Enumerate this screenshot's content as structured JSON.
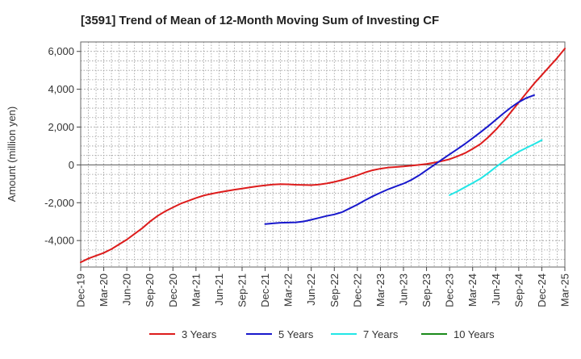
{
  "chart_data": {
    "type": "line",
    "title": "[3591]  Trend of Mean of 12-Month Moving Sum of Investing CF",
    "xlabel": "",
    "ylabel": "Amount (million yen)",
    "ylim": [
      -5400,
      6500
    ],
    "yticks": [
      -4000,
      -2000,
      0,
      2000,
      4000,
      6000
    ],
    "ytick_labels": [
      "-4,000",
      "-2,000",
      "0",
      "2,000",
      "4,000",
      "6,000"
    ],
    "x_labels": [
      "Dec-19",
      "Mar-20",
      "Jun-20",
      "Sep-20",
      "Dec-20",
      "Mar-21",
      "Jun-21",
      "Sep-21",
      "Dec-21",
      "Mar-22",
      "Jun-22",
      "Sep-22",
      "Dec-22",
      "Mar-23",
      "Jun-23",
      "Sep-23",
      "Dec-23",
      "Mar-24",
      "Jun-24",
      "Sep-24",
      "Dec-24",
      "Mar-25"
    ],
    "x_count": 64,
    "grid": true,
    "legend_position": "bottom",
    "series": [
      {
        "name": "3 Years",
        "color": "#dd1c1c",
        "start_index": 0,
        "values": [
          -5150,
          -4950,
          -4800,
          -4650,
          -4450,
          -4200,
          -3950,
          -3650,
          -3350,
          -3000,
          -2700,
          -2450,
          -2250,
          -2050,
          -1900,
          -1750,
          -1620,
          -1530,
          -1450,
          -1380,
          -1310,
          -1250,
          -1190,
          -1130,
          -1080,
          -1040,
          -1020,
          -1030,
          -1050,
          -1060,
          -1070,
          -1040,
          -980,
          -900,
          -800,
          -680,
          -550,
          -400,
          -280,
          -200,
          -140,
          -110,
          -80,
          -40,
          0,
          50,
          120,
          200,
          300,
          450,
          620,
          850,
          1100,
          1450,
          1850,
          2300,
          2800,
          3300,
          3800,
          4300,
          4750,
          5200,
          5650,
          6150
        ]
      },
      {
        "name": "5 Years",
        "color": "#1818cc",
        "start_index": 24,
        "values": [
          -3130,
          -3090,
          -3060,
          -3050,
          -3040,
          -2990,
          -2900,
          -2800,
          -2700,
          -2620,
          -2500,
          -2300,
          -2100,
          -1870,
          -1660,
          -1470,
          -1290,
          -1140,
          -990,
          -800,
          -560,
          -280,
          0,
          280,
          560,
          830,
          1110,
          1410,
          1720,
          2040,
          2380,
          2720,
          3040,
          3320,
          3540,
          3690
        ]
      },
      {
        "name": "7 Years",
        "color": "#22e6e6",
        "start_index": 48,
        "values": [
          -1600,
          -1400,
          -1180,
          -960,
          -730,
          -440,
          -120,
          180,
          450,
          700,
          900,
          1100,
          1310
        ]
      },
      {
        "name": "10 Years",
        "color": "#1a8a1a",
        "start_index": 0,
        "values": []
      }
    ]
  }
}
